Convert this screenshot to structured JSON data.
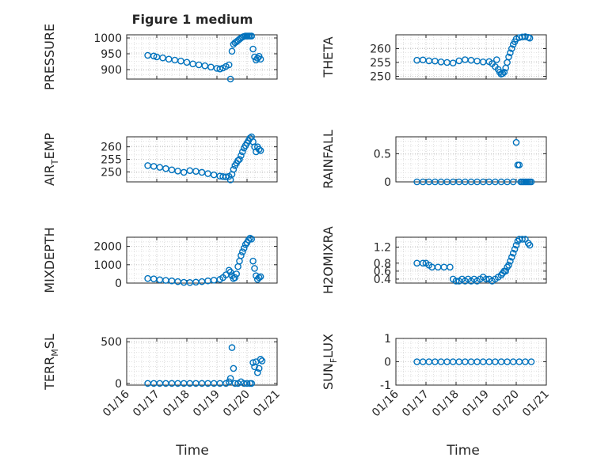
{
  "chart_data": {
    "title": "Figure 1 medium",
    "x_ticks": [
      "01/16",
      "01/17",
      "01/18",
      "01/19",
      "01/20",
      "01/21"
    ],
    "x_range": [
      16,
      21
    ],
    "marker_color": "#0072bd",
    "marker": "open circle",
    "grid": "major and minor dotted",
    "panels": [
      {
        "type": "scatter",
        "ylabel": "PRESSURE",
        "ylabel_sub": "",
        "ylim": [
          870,
          1010
        ],
        "yticks": [
          900,
          950,
          1000
        ],
        "ytick_labels": [
          "900",
          "950",
          "1000"
        ],
        "x": [
          16.7,
          16.9,
          17.0,
          17.2,
          17.4,
          17.6,
          17.8,
          18.0,
          18.2,
          18.4,
          18.6,
          18.8,
          19.0,
          19.1,
          19.2,
          19.3,
          19.4,
          19.45,
          19.5,
          19.55,
          19.6,
          19.65,
          19.7,
          19.75,
          19.8,
          19.85,
          19.9,
          19.95,
          20.0,
          20.05,
          20.1,
          20.15,
          20.2,
          20.25,
          20.3,
          20.35,
          20.4,
          20.45
        ],
        "y": [
          945,
          943,
          940,
          937,
          933,
          930,
          927,
          923,
          918,
          915,
          912,
          908,
          904,
          902,
          905,
          910,
          915,
          870,
          958,
          980,
          985,
          988,
          992,
          996,
          1000,
          1003,
          1005,
          1006,
          1006,
          1006,
          1006,
          1006,
          965,
          940,
          930,
          936,
          942,
          933
        ]
      },
      {
        "type": "scatter",
        "ylabel": "THETA",
        "ylabel_sub": "",
        "ylim": [
          249,
          265
        ],
        "yticks": [
          250,
          255,
          260
        ],
        "ytick_labels": [
          "250",
          "255",
          "260"
        ],
        "x": [
          16.7,
          16.9,
          17.1,
          17.3,
          17.5,
          17.7,
          17.9,
          18.1,
          18.3,
          18.5,
          18.7,
          18.9,
          19.1,
          19.2,
          19.3,
          19.35,
          19.4,
          19.45,
          19.5,
          19.55,
          19.6,
          19.65,
          19.7,
          19.75,
          19.8,
          19.85,
          19.9,
          19.95,
          20.0,
          20.1,
          20.2,
          20.3,
          20.4,
          20.45
        ],
        "y": [
          255.8,
          255.9,
          255.6,
          255.5,
          255.2,
          255.0,
          254.8,
          255.6,
          256.0,
          255.8,
          255.5,
          255.2,
          255.3,
          254.6,
          253.5,
          256.0,
          252.5,
          251.5,
          250.8,
          251.0,
          251.5,
          253.0,
          255.0,
          257.0,
          258.5,
          260.0,
          261.5,
          262.5,
          263.5,
          264.0,
          264.2,
          264.3,
          264.1,
          263.8
        ]
      },
      {
        "type": "scatter",
        "ylabel": "AIR",
        "ylabel_sub": "T",
        "ylabel_rest": "EMP",
        "ylim": [
          246,
          264
        ],
        "yticks": [
          250,
          255,
          260
        ],
        "ytick_labels": [
          "250",
          "255",
          "260"
        ],
        "x": [
          16.7,
          16.9,
          17.1,
          17.3,
          17.5,
          17.7,
          17.9,
          18.1,
          18.3,
          18.5,
          18.7,
          18.9,
          19.1,
          19.2,
          19.3,
          19.4,
          19.45,
          19.5,
          19.55,
          19.6,
          19.65,
          19.7,
          19.75,
          19.8,
          19.85,
          19.9,
          19.95,
          20.0,
          20.05,
          20.1,
          20.15,
          20.2,
          20.25,
          20.3,
          20.35,
          20.4,
          20.45
        ],
        "y": [
          252.5,
          252.2,
          251.8,
          251.3,
          250.8,
          250.3,
          249.8,
          250.5,
          250.2,
          249.8,
          249.3,
          248.8,
          248.3,
          248.1,
          248.0,
          248.2,
          246.8,
          249.0,
          251.0,
          252.5,
          253.5,
          254.5,
          255.0,
          256.5,
          258.0,
          259.5,
          260.5,
          261.5,
          262.5,
          263.5,
          264.0,
          262.0,
          260.0,
          258.0,
          260.0,
          259.0,
          258.5
        ]
      },
      {
        "type": "scatter",
        "ylabel": "RAINFALL",
        "ylabel_sub": "",
        "ylim": [
          0,
          0.8
        ],
        "yticks": [
          0,
          0.5
        ],
        "ytick_labels": [
          "0",
          "0.5"
        ],
        "x": [
          16.7,
          16.9,
          17.1,
          17.3,
          17.5,
          17.7,
          17.9,
          18.1,
          18.3,
          18.5,
          18.7,
          18.9,
          19.1,
          19.3,
          19.5,
          19.7,
          19.9,
          20.0,
          20.05,
          20.1,
          20.15,
          20.2,
          20.25,
          20.3,
          20.35,
          20.4,
          20.45,
          20.5
        ],
        "y": [
          0,
          0,
          0,
          0,
          0,
          0,
          0,
          0,
          0,
          0,
          0,
          0,
          0,
          0,
          0,
          0,
          0,
          0.7,
          0.3,
          0.3,
          0,
          0,
          0,
          0,
          0,
          0,
          0,
          0
        ]
      },
      {
        "type": "scatter",
        "ylabel": "MIXDEPTH",
        "ylabel_sub": "",
        "ylim": [
          0,
          2500
        ],
        "yticks": [
          0,
          1000,
          2000
        ],
        "ytick_labels": [
          "0",
          "1000",
          "2000"
        ],
        "x": [
          16.7,
          16.9,
          17.1,
          17.3,
          17.5,
          17.7,
          17.9,
          18.1,
          18.3,
          18.5,
          18.7,
          18.9,
          19.1,
          19.2,
          19.3,
          19.4,
          19.45,
          19.5,
          19.55,
          19.6,
          19.65,
          19.7,
          19.75,
          19.8,
          19.85,
          19.9,
          19.95,
          20.0,
          20.05,
          20.1,
          20.15,
          20.2,
          20.25,
          20.3,
          20.35,
          20.4,
          20.45
        ],
        "y": [
          250,
          230,
          180,
          150,
          120,
          80,
          40,
          30,
          50,
          80,
          120,
          160,
          200,
          300,
          450,
          700,
          600,
          400,
          250,
          300,
          500,
          900,
          1200,
          1500,
          1700,
          1900,
          2100,
          2200,
          2350,
          2450,
          2400,
          1200,
          800,
          400,
          200,
          300,
          350
        ]
      },
      {
        "type": "scatter",
        "ylabel": "H2OMIXRA",
        "ylabel_sub": "",
        "ylim": [
          0.3,
          1.45
        ],
        "yticks": [
          0.4,
          0.6,
          0.8,
          1.2
        ],
        "ytick_labels": [
          "0.4",
          "0.6",
          "0.8",
          "1.2"
        ],
        "x": [
          16.7,
          16.9,
          17.0,
          17.1,
          17.2,
          17.4,
          17.6,
          17.8,
          17.9,
          18.0,
          18.1,
          18.2,
          18.3,
          18.4,
          18.5,
          18.6,
          18.7,
          18.8,
          18.9,
          19.0,
          19.1,
          19.2,
          19.3,
          19.4,
          19.5,
          19.55,
          19.6,
          19.65,
          19.7,
          19.75,
          19.8,
          19.85,
          19.9,
          19.95,
          20.0,
          20.05,
          20.1,
          20.2,
          20.3,
          20.4,
          20.45
        ],
        "y": [
          0.8,
          0.8,
          0.8,
          0.75,
          0.7,
          0.7,
          0.7,
          0.7,
          0.4,
          0.35,
          0.35,
          0.4,
          0.35,
          0.4,
          0.35,
          0.4,
          0.35,
          0.4,
          0.45,
          0.4,
          0.4,
          0.35,
          0.4,
          0.45,
          0.5,
          0.55,
          0.6,
          0.6,
          0.7,
          0.75,
          0.85,
          0.95,
          1.05,
          1.15,
          1.25,
          1.35,
          1.4,
          1.4,
          1.4,
          1.3,
          1.25
        ]
      },
      {
        "type": "scatter",
        "ylabel": "TERR",
        "ylabel_sub": "M",
        "ylabel_rest": "SL",
        "ylim": [
          -20,
          540
        ],
        "yticks": [
          0,
          500
        ],
        "ytick_labels": [
          "0",
          "500"
        ],
        "x": [
          16.7,
          16.9,
          17.1,
          17.3,
          17.5,
          17.7,
          17.9,
          18.1,
          18.3,
          18.5,
          18.7,
          18.9,
          19.1,
          19.3,
          19.4,
          19.45,
          19.5,
          19.55,
          19.6,
          19.7,
          19.8,
          19.9,
          20.0,
          20.1,
          20.15,
          20.2,
          20.25,
          20.3,
          20.35,
          20.4,
          20.45,
          20.5
        ],
        "y": [
          0,
          0,
          0,
          0,
          0,
          0,
          0,
          0,
          0,
          0,
          0,
          0,
          0,
          0,
          20,
          60,
          430,
          180,
          0,
          0,
          20,
          0,
          0,
          0,
          0,
          250,
          200,
          260,
          130,
          180,
          290,
          270
        ]
      },
      {
        "type": "scatter",
        "ylabel": "SUN",
        "ylabel_sub": "F",
        "ylabel_rest": "LUX",
        "ylim": [
          -1,
          1
        ],
        "yticks": [
          -1,
          0,
          1
        ],
        "ytick_labels": [
          "-1",
          "0",
          "1"
        ],
        "x": [
          16.7,
          16.9,
          17.1,
          17.3,
          17.5,
          17.7,
          17.9,
          18.1,
          18.3,
          18.5,
          18.7,
          18.9,
          19.1,
          19.3,
          19.5,
          19.7,
          19.9,
          20.1,
          20.3,
          20.5
        ],
        "y": [
          0,
          0,
          0,
          0,
          0,
          0,
          0,
          0,
          0,
          0,
          0,
          0,
          0,
          0,
          0,
          0,
          0,
          0,
          0,
          0
        ]
      }
    ],
    "xlabel_left": "Time",
    "xlabel_right": "Time"
  }
}
